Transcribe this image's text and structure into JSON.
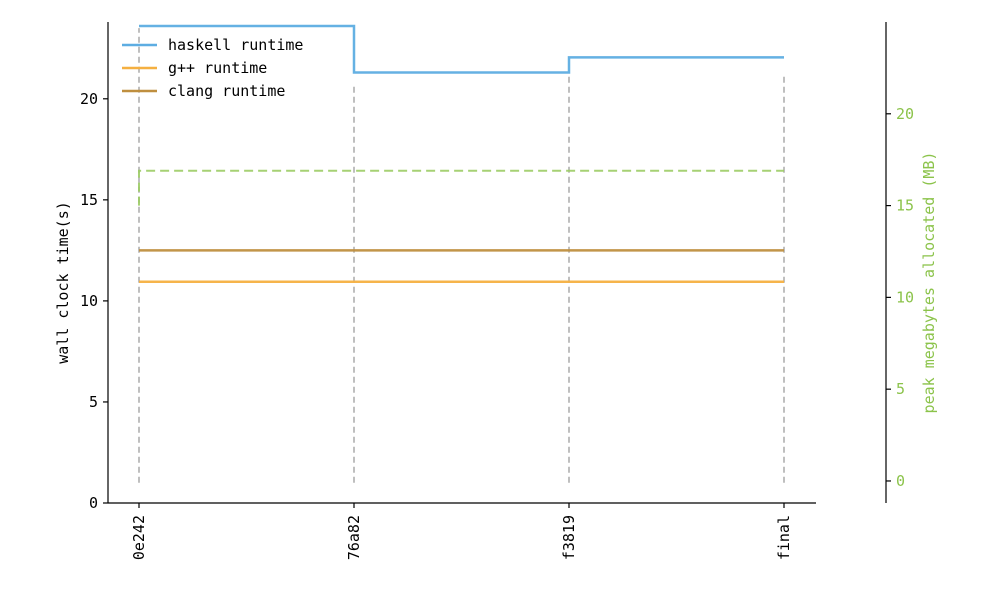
{
  "chart_data": {
    "type": "line",
    "step": true,
    "categories": [
      "0e242",
      "76a82",
      "f3819",
      "final"
    ],
    "ylabel": "wall clock time(s)",
    "ylim": [
      0,
      23.8
    ],
    "yticks": [
      0,
      5,
      10,
      15,
      20
    ],
    "y2label": "peak megabytes allocated (MB)",
    "y2lim": [
      -1.2,
      25
    ],
    "y2ticks": [
      0,
      5,
      10,
      15,
      20
    ],
    "series": [
      {
        "name": "haskell runtime",
        "axis": "left",
        "color": "#5DADE2",
        "style": "solid",
        "values": [
          23.6,
          21.3,
          22.05,
          22.05
        ]
      },
      {
        "name": "g++ runtime",
        "axis": "left",
        "color": "#F5B041",
        "style": "solid",
        "values": [
          10.95,
          10.95,
          10.95,
          10.95
        ]
      },
      {
        "name": "clang runtime",
        "axis": "left",
        "color": "#BF8F3F",
        "style": "solid",
        "values": [
          12.5,
          12.5,
          12.5,
          12.5
        ]
      },
      {
        "name": "haskell memory",
        "axis": "right",
        "color": "#9CCC65",
        "style": "dashed",
        "in_legend": false,
        "start": 15,
        "values": [
          16.9,
          16.9,
          16.9,
          16.9
        ]
      }
    ],
    "vlines": {
      "color": "#aaaaaa",
      "bottom": 1,
      "tops": [
        23.5,
        20.6,
        21.3,
        21.2
      ]
    },
    "legend": {
      "position": "top-left",
      "entries": [
        "haskell runtime",
        "g++ runtime",
        "clang runtime"
      ]
    },
    "colors": {
      "axis": "#000000",
      "right_axis": "#8BC34A",
      "vlines": "#aaaaaa"
    }
  }
}
